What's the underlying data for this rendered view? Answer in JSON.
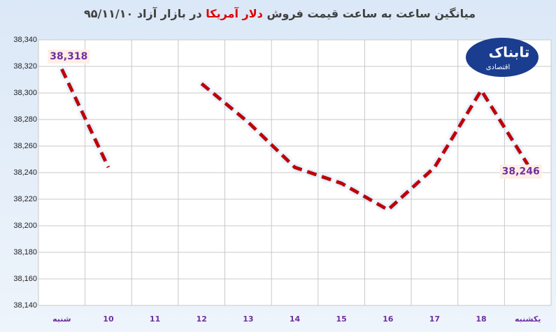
{
  "chart_data": {
    "type": "line",
    "title_parts": [
      "میانگین ساعت به ساعت قیمت فروش",
      "دلار آمریکا",
      "در بازار آزاد ۹۵/۱۱/۱۰"
    ],
    "logo": {
      "text": "تابناک",
      "subtitle": "اقتصادی"
    },
    "categories": [
      "شنبه",
      "10",
      "11",
      "12",
      "13",
      "14",
      "15",
      "16",
      "17",
      "18",
      "یکشنبه"
    ],
    "series": [
      {
        "name": "قیمت فروش",
        "color": "#c00000",
        "values": [
          38318,
          38244,
          null,
          38307,
          38278,
          38244,
          38232,
          38212,
          38244,
          38302,
          38246
        ],
        "value_labels": [
          "38,318",
          null,
          null,
          null,
          null,
          null,
          null,
          null,
          null,
          null,
          "38,246"
        ]
      }
    ],
    "ylim": [
      38140,
      38340
    ],
    "yticks": [
      {
        "value": 38140,
        "label": "38,140"
      },
      {
        "value": 38160,
        "label": "38,160"
      },
      {
        "value": 38180,
        "label": "38,180"
      },
      {
        "value": 38200,
        "label": "38,200"
      },
      {
        "value": 38220,
        "label": "38,220"
      },
      {
        "value": 38240,
        "label": "38,240"
      },
      {
        "value": 38260,
        "label": "38,260"
      },
      {
        "value": 38280,
        "label": "38,280"
      },
      {
        "value": 38300,
        "label": "38,300"
      },
      {
        "value": 38320,
        "label": "38,320"
      },
      {
        "value": 38340,
        "label": "38,340"
      }
    ],
    "grid": true
  }
}
